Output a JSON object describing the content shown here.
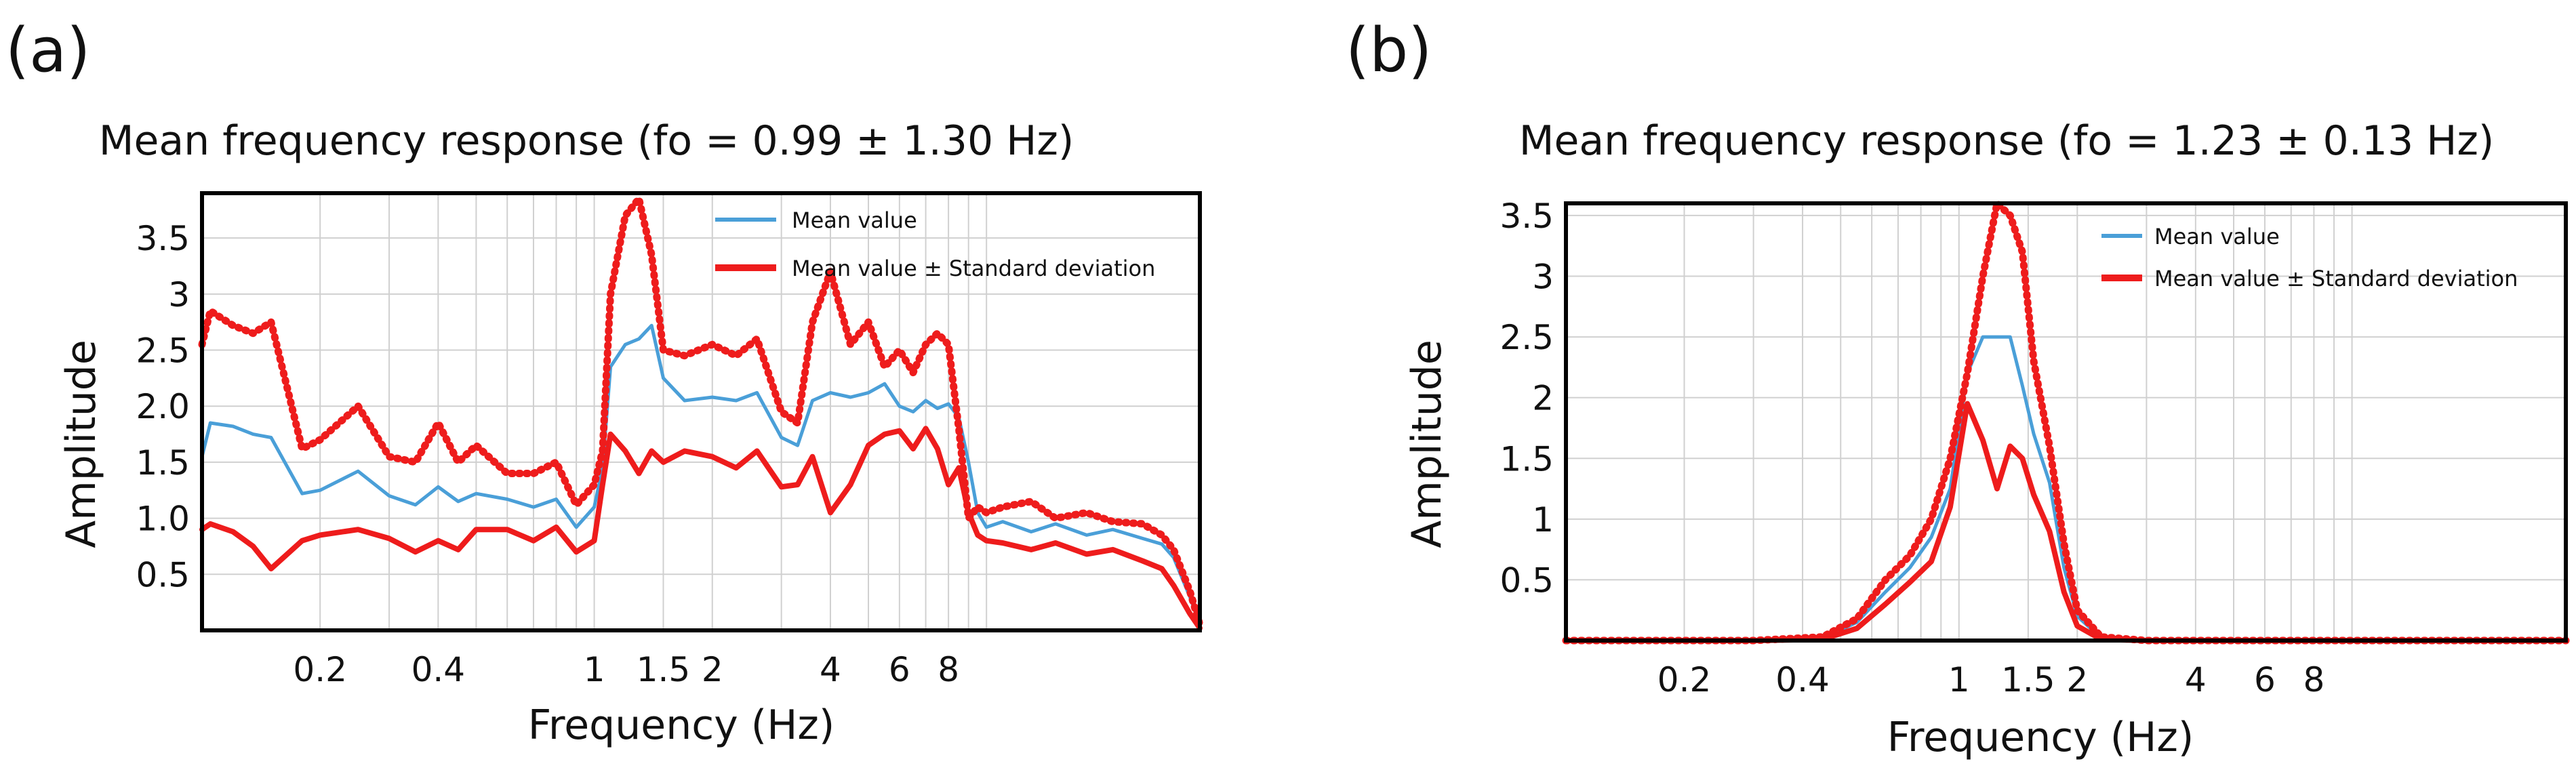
{
  "colors": {
    "mean": "#4a9fd8",
    "std": "#ee1c1c"
  },
  "chart_data": [
    {
      "type": "line",
      "panel_label": "(a)",
      "title": "Mean frequency response (fo = 0.99 ± 1.30 Hz)",
      "xlabel": "Frequency (Hz)",
      "ylabel": "Amplitude",
      "xscale": "log",
      "xlim": [
        0.1,
        35
      ],
      "ylim": [
        0,
        3.9
      ],
      "grid": true,
      "legend_position": "top-right",
      "xticks": [
        0.2,
        0.4,
        1,
        1.5,
        2,
        4,
        6,
        8
      ],
      "xtick_labels": [
        "0.2",
        "0.4",
        "1",
        "1.5",
        "2",
        "4",
        "6",
        "8"
      ],
      "xgrid": [
        0.2,
        0.3,
        0.4,
        0.5,
        0.6,
        0.7,
        0.8,
        0.9,
        1,
        1.5,
        2,
        3,
        4,
        5,
        6,
        7,
        8,
        9,
        10
      ],
      "yticks": [
        0.5,
        1.0,
        1.5,
        2.0,
        2.5,
        3,
        3.5
      ],
      "ytick_labels": [
        "0.5",
        "1.0",
        "1.5",
        "2.0",
        "2.5",
        "3",
        "3.5"
      ],
      "legend": [
        "Mean value",
        "Mean value ± Standard deviation"
      ],
      "series": [
        {
          "name": "Mean value",
          "style": "solid",
          "x": [
            0.1,
            0.105,
            0.12,
            0.135,
            0.15,
            0.18,
            0.2,
            0.25,
            0.3,
            0.35,
            0.4,
            0.45,
            0.5,
            0.6,
            0.7,
            0.8,
            0.9,
            1.0,
            1.05,
            1.1,
            1.2,
            1.3,
            1.4,
            1.5,
            1.7,
            2.0,
            2.3,
            2.6,
            3.0,
            3.3,
            3.6,
            4.0,
            4.5,
            5.0,
            5.5,
            6.0,
            6.5,
            7.0,
            7.5,
            8.0,
            8.5,
            9.0,
            9.5,
            10,
            11,
            13,
            15,
            18,
            21,
            25,
            28,
            30,
            33,
            35
          ],
          "y": [
            1.55,
            1.85,
            1.82,
            1.75,
            1.72,
            1.22,
            1.25,
            1.42,
            1.2,
            1.12,
            1.28,
            1.15,
            1.22,
            1.17,
            1.1,
            1.17,
            0.92,
            1.1,
            1.45,
            2.35,
            2.55,
            2.6,
            2.72,
            2.25,
            2.05,
            2.08,
            2.05,
            2.12,
            1.72,
            1.65,
            2.05,
            2.12,
            2.08,
            2.12,
            2.2,
            2.0,
            1.95,
            2.05,
            1.98,
            2.02,
            1.9,
            1.5,
            1.05,
            0.92,
            0.97,
            0.88,
            0.95,
            0.85,
            0.9,
            0.82,
            0.77,
            0.65,
            0.3,
            0.05
          ]
        },
        {
          "name": "Mean value + Standard deviation",
          "style": "dotted",
          "x": [
            0.1,
            0.105,
            0.12,
            0.135,
            0.15,
            0.18,
            0.2,
            0.25,
            0.3,
            0.35,
            0.4,
            0.45,
            0.5,
            0.6,
            0.7,
            0.8,
            0.9,
            1.0,
            1.05,
            1.1,
            1.2,
            1.3,
            1.4,
            1.5,
            1.7,
            2.0,
            2.3,
            2.6,
            3.0,
            3.3,
            3.6,
            4.0,
            4.5,
            5.0,
            5.5,
            6.0,
            6.5,
            7.0,
            7.5,
            8.0,
            8.5,
            9.0,
            9.5,
            10,
            11,
            13,
            15,
            18,
            21,
            25,
            28,
            30,
            33,
            35
          ],
          "y": [
            2.55,
            2.85,
            2.72,
            2.65,
            2.75,
            1.62,
            1.7,
            2.0,
            1.55,
            1.5,
            1.85,
            1.5,
            1.65,
            1.4,
            1.4,
            1.5,
            1.12,
            1.3,
            1.6,
            3.0,
            3.7,
            3.85,
            3.35,
            2.5,
            2.45,
            2.55,
            2.45,
            2.6,
            1.95,
            1.85,
            2.75,
            3.2,
            2.55,
            2.75,
            2.35,
            2.5,
            2.3,
            2.55,
            2.65,
            2.55,
            1.8,
            1.0,
            1.1,
            1.05,
            1.1,
            1.15,
            1.0,
            1.05,
            0.97,
            0.95,
            0.85,
            0.72,
            0.35,
            0.05
          ]
        },
        {
          "name": "Mean value - Standard deviation",
          "style": "solid",
          "x": [
            0.1,
            0.105,
            0.12,
            0.135,
            0.15,
            0.18,
            0.2,
            0.25,
            0.3,
            0.35,
            0.4,
            0.45,
            0.5,
            0.6,
            0.7,
            0.8,
            0.9,
            1.0,
            1.05,
            1.1,
            1.2,
            1.3,
            1.4,
            1.5,
            1.7,
            2.0,
            2.3,
            2.6,
            3.0,
            3.3,
            3.6,
            4.0,
            4.5,
            5.0,
            5.5,
            6.0,
            6.5,
            7.0,
            7.5,
            8.0,
            8.5,
            9.0,
            9.5,
            10,
            11,
            13,
            15,
            18,
            21,
            25,
            28,
            30,
            33,
            35
          ],
          "y": [
            0.9,
            0.95,
            0.88,
            0.75,
            0.55,
            0.8,
            0.85,
            0.9,
            0.82,
            0.7,
            0.8,
            0.72,
            0.9,
            0.9,
            0.8,
            0.92,
            0.7,
            0.8,
            1.3,
            1.75,
            1.6,
            1.4,
            1.6,
            1.5,
            1.6,
            1.55,
            1.45,
            1.6,
            1.28,
            1.3,
            1.55,
            1.05,
            1.3,
            1.65,
            1.75,
            1.78,
            1.62,
            1.8,
            1.62,
            1.3,
            1.45,
            1.05,
            0.85,
            0.8,
            0.78,
            0.72,
            0.78,
            0.68,
            0.72,
            0.62,
            0.55,
            0.4,
            0.15,
            0.02
          ]
        }
      ]
    },
    {
      "type": "line",
      "panel_label": "(b)",
      "title": "Mean frequency response (fo = 1.23 ± 0.13 Hz)",
      "xlabel": "Frequency (Hz)",
      "ylabel": "Amplitude",
      "xscale": "log",
      "xlim": [
        0.1,
        35
      ],
      "ylim": [
        0,
        3.6
      ],
      "grid": true,
      "legend_position": "top-right",
      "xticks": [
        0.2,
        0.4,
        1,
        1.5,
        2,
        4,
        6,
        8
      ],
      "xtick_labels": [
        "0.2",
        "0.4",
        "1",
        "1.5",
        "2",
        "4",
        "6",
        "8"
      ],
      "xgrid": [
        0.2,
        0.3,
        0.4,
        0.5,
        0.6,
        0.7,
        0.8,
        0.9,
        1,
        1.5,
        2,
        3,
        4,
        5,
        6,
        7,
        8,
        9,
        10
      ],
      "yticks": [
        0.5,
        1,
        1.5,
        2,
        2.5,
        3,
        3.5
      ],
      "ytick_labels": [
        "0.5",
        "1",
        "1.5",
        "2",
        "2.5",
        "3",
        "3.5"
      ],
      "legend": [
        "Mean value",
        "Mean value ± Standard deviation"
      ],
      "series": [
        {
          "name": "Mean value",
          "style": "solid",
          "x": [
            0.1,
            0.3,
            0.45,
            0.55,
            0.65,
            0.75,
            0.85,
            0.95,
            1.05,
            1.15,
            1.25,
            1.35,
            1.45,
            1.55,
            1.7,
            1.85,
            2.0,
            2.3,
            3,
            35
          ],
          "y": [
            0,
            0,
            0.02,
            0.15,
            0.4,
            0.6,
            0.85,
            1.25,
            2.2,
            2.5,
            2.5,
            2.5,
            2.1,
            1.7,
            1.3,
            0.6,
            0.2,
            0.02,
            0,
            0
          ]
        },
        {
          "name": "Mean value + Standard deviation",
          "style": "dotted",
          "x": [
            0.1,
            0.3,
            0.45,
            0.55,
            0.65,
            0.75,
            0.85,
            0.95,
            1.05,
            1.15,
            1.25,
            1.35,
            1.45,
            1.55,
            1.7,
            1.85,
            2.0,
            2.3,
            3,
            35
          ],
          "y": [
            0,
            0,
            0.03,
            0.18,
            0.5,
            0.7,
            1.0,
            1.5,
            2.2,
            3.0,
            3.6,
            3.5,
            3.2,
            2.3,
            1.6,
            0.8,
            0.25,
            0.03,
            0,
            0
          ]
        },
        {
          "name": "Mean value - Standard deviation",
          "style": "solid",
          "x": [
            0.1,
            0.3,
            0.45,
            0.55,
            0.65,
            0.75,
            0.85,
            0.95,
            1.05,
            1.15,
            1.25,
            1.35,
            1.45,
            1.55,
            1.7,
            1.85,
            2.0,
            2.3,
            3,
            35
          ],
          "y": [
            0,
            0,
            0.01,
            0.1,
            0.3,
            0.48,
            0.65,
            1.1,
            1.95,
            1.65,
            1.25,
            1.6,
            1.5,
            1.2,
            0.9,
            0.4,
            0.12,
            0.01,
            0,
            0
          ]
        }
      ]
    }
  ]
}
